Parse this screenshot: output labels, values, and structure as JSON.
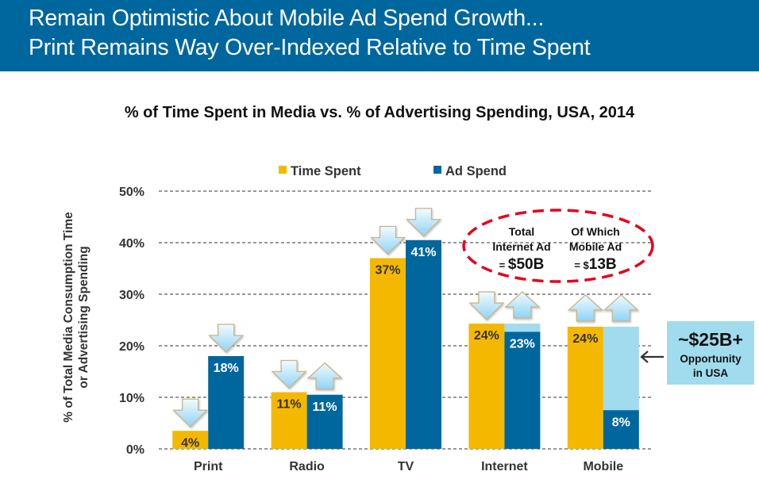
{
  "header": {
    "title_line1": "Remain Optimistic About Mobile Ad Spend Growth...",
    "title_line2": "Print Remains Way Over-Indexed Relative to Time Spent",
    "background_color": "#00679e"
  },
  "chart_data": {
    "type": "bar",
    "title": "% of Time Spent in Media vs. % of Advertising Spending, USA, 2014",
    "xlabel": "",
    "ylabel_lines": [
      "% of Total Media Consumption Time",
      "or Advertising Spending"
    ],
    "ylim": [
      0,
      50
    ],
    "yticks": [
      0,
      10,
      20,
      30,
      40,
      50
    ],
    "ytick_labels": [
      "0%",
      "10%",
      "20%",
      "30%",
      "40%",
      "50%"
    ],
    "grid": "horizontal-dashed",
    "legend_position": "top-center",
    "categories": [
      "Print",
      "Radio",
      "TV",
      "Internet",
      "Mobile"
    ],
    "series": [
      {
        "name": "Time Spent",
        "color": "#f5b800",
        "values": [
          3.5,
          11,
          37,
          24.3,
          23.7
        ],
        "labels": [
          "4%",
          "11%",
          "37%",
          "24%",
          "24%"
        ],
        "label_color": "#333333",
        "trend_arrows": [
          "down",
          "down",
          "down",
          "down",
          "up"
        ]
      },
      {
        "name": "Ad Spend",
        "color": "#00679e",
        "values": [
          18,
          10.5,
          40.5,
          22.7,
          7.5
        ],
        "labels": [
          "18%",
          "11%",
          "41%",
          "23%",
          "8%"
        ],
        "label_color": "#ffffff",
        "trend_arrows": [
          "down",
          "up",
          "down",
          "up",
          "up"
        ]
      }
    ],
    "opportunity_gap": {
      "color": "#a0dcee",
      "categories": [
        "Internet",
        "Mobile"
      ],
      "top_values": [
        24.3,
        23.7
      ]
    },
    "annotations": {
      "oval": {
        "border_color": "#e8001c",
        "left": {
          "line1": "Total",
          "line2": "Internet Ad",
          "prefix": "= ",
          "value": "$50B"
        },
        "right": {
          "line1": "Of Which",
          "line2": "Mobile Ad",
          "prefix": "= $",
          "value": "13B"
        }
      },
      "opportunity_box": {
        "background_color": "#a0dcee",
        "headline": "~$25B+",
        "line1": "Opportunity",
        "line2": "in USA",
        "arrow_direction": "left"
      }
    }
  }
}
